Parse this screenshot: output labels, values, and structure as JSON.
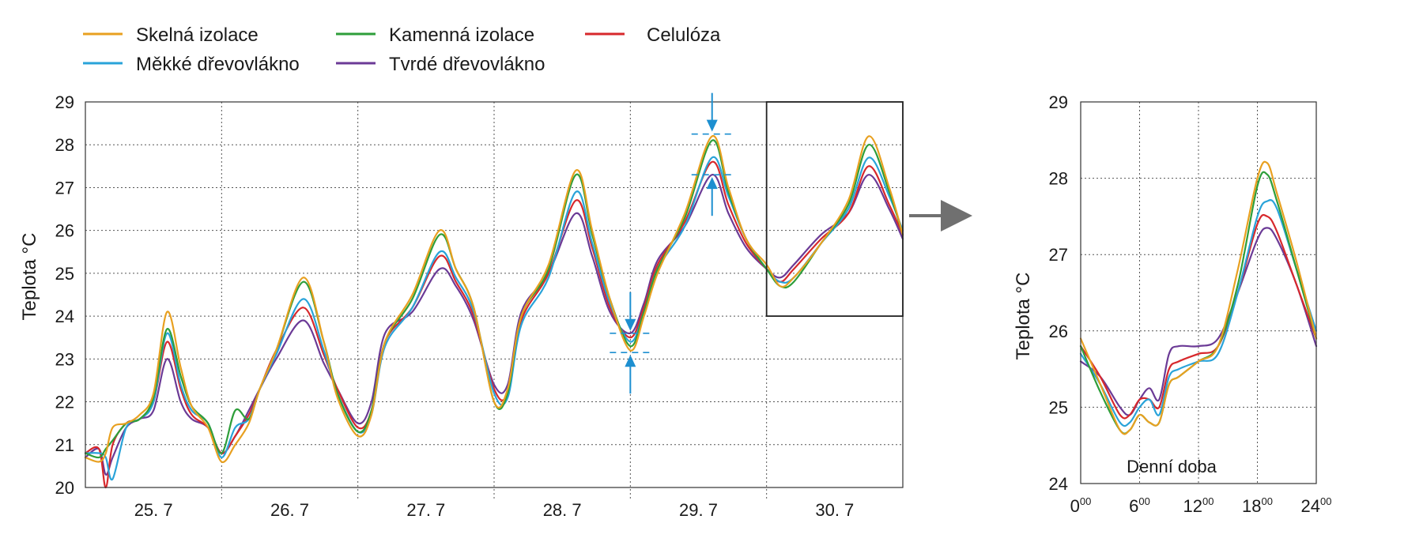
{
  "colors": {
    "skelna": "#e8a020",
    "kamenna": "#2e9e3a",
    "celuloza": "#d7282c",
    "mekke": "#29a3d9",
    "tvrde": "#6b3a96",
    "annotation": "#1d8fd0",
    "arrow": "#707070"
  },
  "icons": {
    "zoom_arrow": "right-arrow-icon",
    "marker_arrow": "down-arrow-icon"
  },
  "chart_data": [
    {
      "type": "line",
      "title": "",
      "xlabel": "",
      "ylabel": "Teplota °C",
      "ylim": [
        20,
        29
      ],
      "xlim": [
        0,
        6
      ],
      "yticks": [
        20,
        21,
        22,
        23,
        24,
        25,
        26,
        27,
        28,
        29
      ],
      "xtick_labels": [
        "25. 7",
        "26. 7",
        "27. 7",
        "28. 7",
        "29. 7",
        "30. 7"
      ],
      "grid": true,
      "legend": "top",
      "zoom_box": {
        "x": [
          5,
          6
        ],
        "y": [
          24,
          29
        ]
      },
      "series": [
        {
          "name": "Skelná izolace",
          "color_key": "skelna",
          "x": [
            0,
            0.1,
            0.15,
            0.2,
            0.3,
            0.4,
            0.5,
            0.6,
            0.7,
            0.78,
            0.9,
            1.0,
            1.1,
            1.2,
            1.28,
            1.4,
            1.6,
            1.75,
            1.85,
            2.0,
            2.1,
            2.2,
            2.4,
            2.6,
            2.72,
            2.85,
            3.0,
            3.1,
            3.2,
            3.4,
            3.6,
            3.72,
            3.85,
            4.0,
            4.1,
            4.2,
            4.4,
            4.6,
            4.72,
            4.85,
            5.0,
            5.1,
            5.2,
            5.4,
            5.6,
            5.75,
            5.9,
            6.0
          ],
          "values": [
            20.7,
            20.6,
            20.8,
            21.4,
            21.5,
            21.7,
            22.2,
            24.1,
            22.8,
            21.9,
            21.4,
            20.6,
            21.0,
            21.5,
            22.3,
            23.2,
            24.9,
            23.4,
            22.1,
            21.2,
            21.7,
            23.4,
            24.5,
            26.0,
            25.1,
            24.2,
            22.0,
            22.3,
            24.0,
            25.2,
            27.4,
            26.0,
            24.4,
            23.2,
            24.0,
            25.0,
            26.4,
            28.2,
            27.0,
            25.8,
            25.2,
            24.7,
            24.9,
            25.7,
            26.7,
            28.2,
            27.0,
            25.9
          ]
        },
        {
          "name": "Kamenná izolace",
          "color_key": "kamenna",
          "x": [
            0,
            0.1,
            0.15,
            0.2,
            0.3,
            0.4,
            0.5,
            0.6,
            0.7,
            0.78,
            0.9,
            1.0,
            1.1,
            1.2,
            1.28,
            1.4,
            1.6,
            1.75,
            1.85,
            2.0,
            2.1,
            2.2,
            2.4,
            2.6,
            2.72,
            2.85,
            3.0,
            3.1,
            3.2,
            3.4,
            3.6,
            3.72,
            3.85,
            4.0,
            4.1,
            4.2,
            4.4,
            4.6,
            4.72,
            4.85,
            5.0,
            5.1,
            5.2,
            5.4,
            5.6,
            5.75,
            5.9,
            6.0
          ],
          "values": [
            20.8,
            20.7,
            20.9,
            21.1,
            21.5,
            21.6,
            22.1,
            23.7,
            22.6,
            21.9,
            21.5,
            20.8,
            21.8,
            21.6,
            22.3,
            23.2,
            24.8,
            23.4,
            22.2,
            21.3,
            21.8,
            23.4,
            24.4,
            25.9,
            25.1,
            24.2,
            22.0,
            22.2,
            24.0,
            25.1,
            27.3,
            25.9,
            24.4,
            23.3,
            24.1,
            25.1,
            26.3,
            28.1,
            26.9,
            25.8,
            25.1,
            24.7,
            24.8,
            25.7,
            26.6,
            28.0,
            26.9,
            25.9
          ]
        },
        {
          "name": "Celulóza",
          "color_key": "celuloza",
          "x": [
            0,
            0.1,
            0.15,
            0.2,
            0.3,
            0.4,
            0.5,
            0.6,
            0.7,
            0.78,
            0.9,
            1.0,
            1.1,
            1.2,
            1.28,
            1.4,
            1.6,
            1.75,
            1.85,
            2.0,
            2.1,
            2.2,
            2.4,
            2.6,
            2.72,
            2.85,
            3.0,
            3.1,
            3.2,
            3.4,
            3.6,
            3.72,
            3.85,
            4.0,
            4.1,
            4.2,
            4.4,
            4.6,
            4.72,
            4.85,
            5.0,
            5.1,
            5.2,
            5.4,
            5.6,
            5.75,
            5.9,
            6.0
          ],
          "values": [
            20.8,
            20.9,
            20.0,
            21.0,
            21.5,
            21.6,
            22.0,
            23.4,
            22.3,
            21.7,
            21.4,
            20.8,
            21.2,
            21.7,
            22.3,
            23.2,
            24.2,
            23.1,
            22.3,
            21.4,
            21.8,
            23.4,
            24.2,
            25.4,
            24.8,
            24.0,
            22.3,
            22.2,
            23.9,
            25.0,
            26.7,
            25.6,
            24.2,
            23.5,
            24.2,
            25.2,
            26.2,
            27.6,
            26.6,
            25.7,
            25.1,
            24.8,
            25.1,
            25.8,
            26.4,
            27.5,
            26.6,
            25.9
          ]
        },
        {
          "name": "Měkké dřevovlákno",
          "color_key": "mekke",
          "x": [
            0,
            0.1,
            0.15,
            0.2,
            0.3,
            0.4,
            0.5,
            0.6,
            0.7,
            0.78,
            0.9,
            1.0,
            1.1,
            1.2,
            1.28,
            1.4,
            1.6,
            1.75,
            1.85,
            2.0,
            2.1,
            2.2,
            2.4,
            2.6,
            2.72,
            2.85,
            3.0,
            3.1,
            3.2,
            3.4,
            3.6,
            3.72,
            3.85,
            4.0,
            4.1,
            4.2,
            4.4,
            4.6,
            4.72,
            4.85,
            5.0,
            5.1,
            5.2,
            5.4,
            5.6,
            5.75,
            5.9,
            6.0
          ],
          "values": [
            20.8,
            20.8,
            20.7,
            20.2,
            21.4,
            21.6,
            22.0,
            23.6,
            22.4,
            21.8,
            21.5,
            20.7,
            21.4,
            21.6,
            22.3,
            23.1,
            24.4,
            23.2,
            22.2,
            21.3,
            21.7,
            23.3,
            24.2,
            25.5,
            24.9,
            24.1,
            22.2,
            22.1,
            23.8,
            24.9,
            26.9,
            25.7,
            24.3,
            23.4,
            24.1,
            25.1,
            26.1,
            27.7,
            26.8,
            25.8,
            25.1,
            24.8,
            24.9,
            25.7,
            26.5,
            27.7,
            26.8,
            26.0
          ]
        },
        {
          "name": "Tvrdé dřevovlákno",
          "color_key": "tvrde",
          "x": [
            0,
            0.1,
            0.15,
            0.2,
            0.3,
            0.4,
            0.5,
            0.6,
            0.7,
            0.78,
            0.9,
            1.0,
            1.1,
            1.2,
            1.28,
            1.4,
            1.6,
            1.75,
            1.85,
            2.0,
            2.1,
            2.2,
            2.4,
            2.6,
            2.72,
            2.85,
            3.0,
            3.1,
            3.2,
            3.4,
            3.6,
            3.72,
            3.85,
            4.0,
            4.1,
            4.2,
            4.4,
            4.6,
            4.72,
            4.85,
            5.0,
            5.1,
            5.2,
            5.4,
            5.6,
            5.75,
            5.9,
            6.0
          ],
          "values": [
            20.7,
            20.9,
            20.3,
            20.7,
            21.4,
            21.6,
            21.8,
            23.0,
            22.0,
            21.6,
            21.4,
            20.8,
            21.2,
            21.8,
            22.3,
            23.0,
            23.9,
            22.9,
            22.3,
            21.5,
            22.0,
            23.6,
            24.1,
            25.1,
            24.7,
            23.9,
            22.4,
            22.4,
            24.1,
            25.0,
            26.4,
            25.4,
            24.1,
            23.6,
            24.3,
            25.3,
            26.1,
            27.3,
            26.4,
            25.6,
            25.1,
            24.9,
            25.2,
            25.9,
            26.4,
            27.3,
            26.5,
            25.8
          ]
        }
      ]
    },
    {
      "type": "line",
      "title": "",
      "xlabel": "Denní doba",
      "ylabel": "Teplota °C",
      "ylim": [
        24,
        29
      ],
      "xlim": [
        0,
        24
      ],
      "yticks": [
        24,
        25,
        26,
        27,
        28,
        29
      ],
      "xtick_labels": [
        {
          "hour": 0,
          "main": "0",
          "sup": "00"
        },
        {
          "hour": 6,
          "main": "6",
          "sup": "00"
        },
        {
          "hour": 12,
          "main": "12",
          "sup": "00"
        },
        {
          "hour": 18,
          "main": "18",
          "sup": "00"
        },
        {
          "hour": 24,
          "main": "24",
          "sup": "00"
        }
      ],
      "grid": true,
      "series": [
        {
          "name": "Skelná izolace",
          "color_key": "skelna",
          "x": [
            0,
            2,
            4,
            5,
            6,
            7,
            8,
            9,
            10,
            12,
            14,
            16,
            18,
            19,
            20,
            22,
            24
          ],
          "values": [
            25.9,
            25.3,
            24.7,
            24.7,
            24.9,
            24.8,
            24.8,
            25.3,
            25.4,
            25.6,
            25.8,
            26.8,
            28.0,
            28.2,
            27.8,
            26.9,
            25.9
          ]
        },
        {
          "name": "Kamenná izolace",
          "color_key": "kamenna",
          "x": [
            0,
            2,
            4,
            5,
            6,
            7,
            8,
            9,
            10,
            12,
            14,
            16,
            18,
            19,
            20,
            22,
            24
          ],
          "values": [
            25.8,
            25.2,
            24.7,
            24.7,
            24.9,
            24.8,
            24.8,
            25.3,
            25.4,
            25.6,
            25.8,
            26.6,
            27.9,
            28.05,
            27.7,
            26.8,
            25.9
          ]
        },
        {
          "name": "Celulóza",
          "color_key": "celuloza",
          "x": [
            0,
            2,
            4,
            5,
            6,
            7,
            8,
            9,
            10,
            12,
            14,
            16,
            18,
            19,
            20,
            22,
            24
          ],
          "values": [
            25.8,
            25.4,
            24.9,
            24.9,
            25.1,
            25.1,
            25.0,
            25.5,
            25.6,
            25.7,
            25.8,
            26.5,
            27.4,
            27.5,
            27.3,
            26.6,
            25.9
          ]
        },
        {
          "name": "Měkké dřevovlákno",
          "color_key": "mekke",
          "x": [
            0,
            2,
            4,
            5,
            6,
            7,
            8,
            9,
            10,
            12,
            14,
            16,
            18,
            19,
            20,
            22,
            24
          ],
          "values": [
            25.7,
            25.3,
            24.8,
            24.8,
            25.0,
            25.1,
            24.9,
            25.4,
            25.5,
            25.6,
            25.7,
            26.5,
            27.5,
            27.7,
            27.6,
            26.8,
            26.0
          ]
        },
        {
          "name": "Tvrdé dřevovlákno",
          "color_key": "tvrde",
          "x": [
            0,
            2,
            4,
            5,
            6,
            7,
            8,
            9,
            10,
            12,
            14,
            16,
            18,
            19,
            20,
            22,
            24
          ],
          "values": [
            25.6,
            25.4,
            25.0,
            24.9,
            25.1,
            25.25,
            25.1,
            25.7,
            25.8,
            25.8,
            25.9,
            26.5,
            27.2,
            27.35,
            27.2,
            26.6,
            25.8
          ]
        }
      ]
    }
  ]
}
